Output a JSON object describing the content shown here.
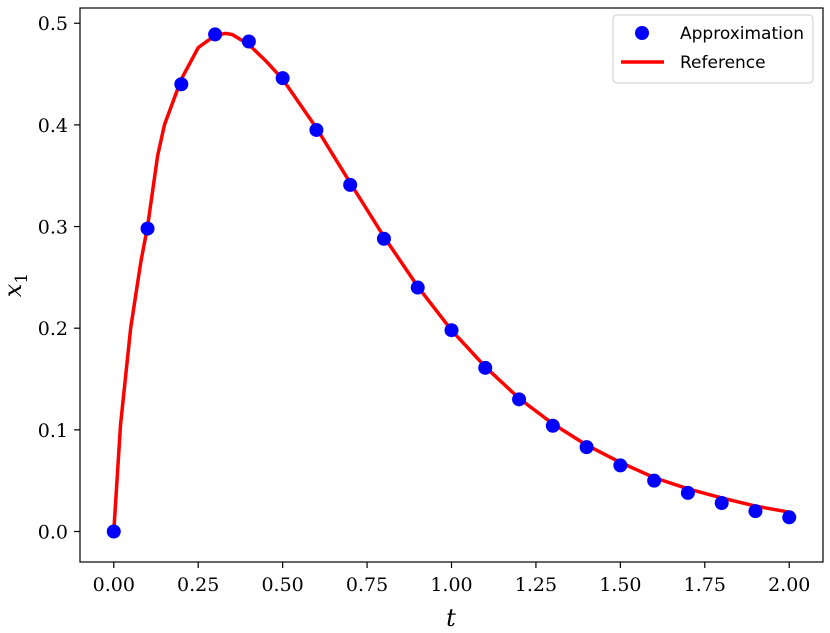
{
  "chart_data": {
    "type": "line",
    "xlabel": "t",
    "ylabel": "x",
    "ylabel_subscript": "1",
    "xlim": [
      -0.1,
      2.1
    ],
    "ylim": [
      -0.03,
      0.515
    ],
    "x_ticks": [
      "0.00",
      "0.25",
      "0.50",
      "0.75",
      "1.00",
      "1.25",
      "1.50",
      "1.75",
      "2.00"
    ],
    "y_ticks": [
      "0.0",
      "0.1",
      "0.2",
      "0.3",
      "0.4",
      "0.5"
    ],
    "legend_position": "top-right",
    "grid": false,
    "series": [
      {
        "name": "Approximation",
        "style": "markers",
        "color": "#0000ff",
        "x": [
          0.0,
          0.1,
          0.2,
          0.3,
          0.4,
          0.5,
          0.6,
          0.7,
          0.8,
          0.9,
          1.0,
          1.1,
          1.2,
          1.3,
          1.4,
          1.5,
          1.6,
          1.7,
          1.8,
          1.9,
          2.0
        ],
        "y": [
          0.0,
          0.298,
          0.44,
          0.489,
          0.482,
          0.446,
          0.395,
          0.341,
          0.288,
          0.24,
          0.198,
          0.161,
          0.13,
          0.104,
          0.083,
          0.065,
          0.05,
          0.038,
          0.028,
          0.02,
          0.014
        ]
      },
      {
        "name": "Reference",
        "style": "line",
        "color": "#ff0000",
        "x": [
          0.0,
          0.02,
          0.05,
          0.08,
          0.1,
          0.13,
          0.15,
          0.2,
          0.25,
          0.3,
          0.33,
          0.35,
          0.4,
          0.45,
          0.5,
          0.6,
          0.7,
          0.8,
          0.9,
          1.0,
          1.1,
          1.2,
          1.3,
          1.4,
          1.5,
          1.6,
          1.7,
          1.8,
          1.9,
          2.0
        ],
        "y": [
          0.0,
          0.105,
          0.2,
          0.265,
          0.3,
          0.37,
          0.4,
          0.445,
          0.476,
          0.488,
          0.49,
          0.489,
          0.479,
          0.463,
          0.445,
          0.397,
          0.343,
          0.29,
          0.241,
          0.198,
          0.162,
          0.131,
          0.106,
          0.085,
          0.068,
          0.053,
          0.042,
          0.033,
          0.025,
          0.019
        ]
      }
    ]
  }
}
